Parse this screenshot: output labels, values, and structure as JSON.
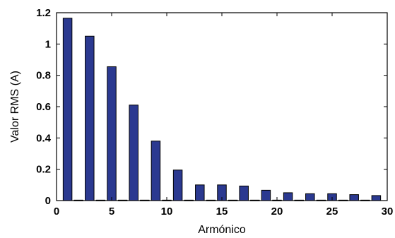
{
  "chart_data": {
    "type": "bar",
    "xlabel": "Armónico",
    "ylabel": "Valor RMS (A)",
    "xlim": [
      0,
      30
    ],
    "ylim": [
      0,
      1.2
    ],
    "x_ticks": [
      0,
      5,
      10,
      15,
      20,
      25,
      30
    ],
    "x_tick_labels": [
      "0",
      "5",
      "10",
      "15",
      "20",
      "25",
      "30"
    ],
    "y_ticks": [
      0,
      0.2,
      0.4,
      0.6,
      0.8,
      1.0,
      1.2
    ],
    "y_tick_labels": [
      "0",
      "0.2",
      "0.4",
      "0.6",
      "0.8",
      "1",
      "1.2"
    ],
    "grid": false,
    "bar_color": "#2b3990",
    "series": [
      {
        "x": [
          1,
          2,
          3,
          4,
          5,
          6,
          7,
          8,
          9,
          10,
          11,
          12,
          13,
          14,
          15,
          16,
          17,
          18,
          19,
          20,
          21,
          22,
          23,
          24,
          25,
          26,
          27,
          28,
          29
        ],
        "values": [
          1.165,
          0.003,
          1.05,
          0.003,
          0.855,
          0.003,
          0.61,
          0.003,
          0.38,
          0.003,
          0.195,
          0.003,
          0.1,
          0.003,
          0.1,
          0.003,
          0.093,
          0.003,
          0.066,
          0.003,
          0.05,
          0.003,
          0.044,
          0.003,
          0.044,
          0.003,
          0.038,
          0.003,
          0.032
        ]
      }
    ]
  }
}
